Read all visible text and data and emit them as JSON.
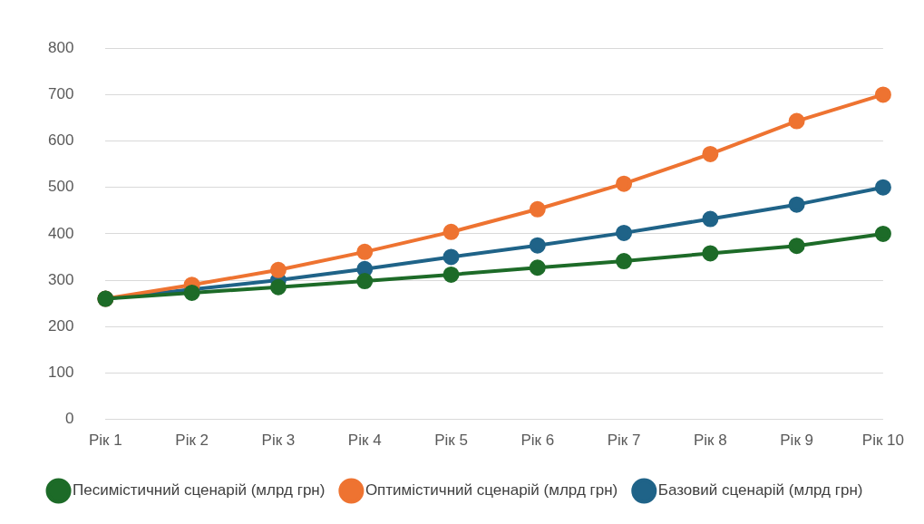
{
  "chart_data": {
    "type": "line",
    "categories": [
      "Рік 1",
      "Рік 2",
      "Рік 3",
      "Рік 4",
      "Рік 5",
      "Рік 6",
      "Рік 7",
      "Рік 8",
      "Рік 9",
      "Рік 10"
    ],
    "series": [
      {
        "name": "Базовий сценарій (млрд грн)",
        "color": "#1f6388",
        "values": [
          260,
          280,
          300,
          324,
          350,
          375,
          402,
          432,
          463,
          500
        ]
      },
      {
        "name": "Оптимістичний сценарій (млрд грн)",
        "color": "#ee7331",
        "values": [
          260,
          290,
          322,
          361,
          404,
          453,
          508,
          572,
          643,
          700
        ]
      },
      {
        "name": "Песимістичний сценарій (млрд грн)",
        "color": "#1d6b28",
        "values": [
          260,
          273,
          285,
          298,
          312,
          327,
          341,
          358,
          374,
          400
        ]
      }
    ],
    "ylim": [
      0,
      800
    ],
    "yticks": [
      0,
      100,
      200,
      300,
      400,
      500,
      600,
      700,
      800
    ],
    "grid": "y",
    "legend": "bottom",
    "marker": "circle",
    "line_style": "solid"
  }
}
